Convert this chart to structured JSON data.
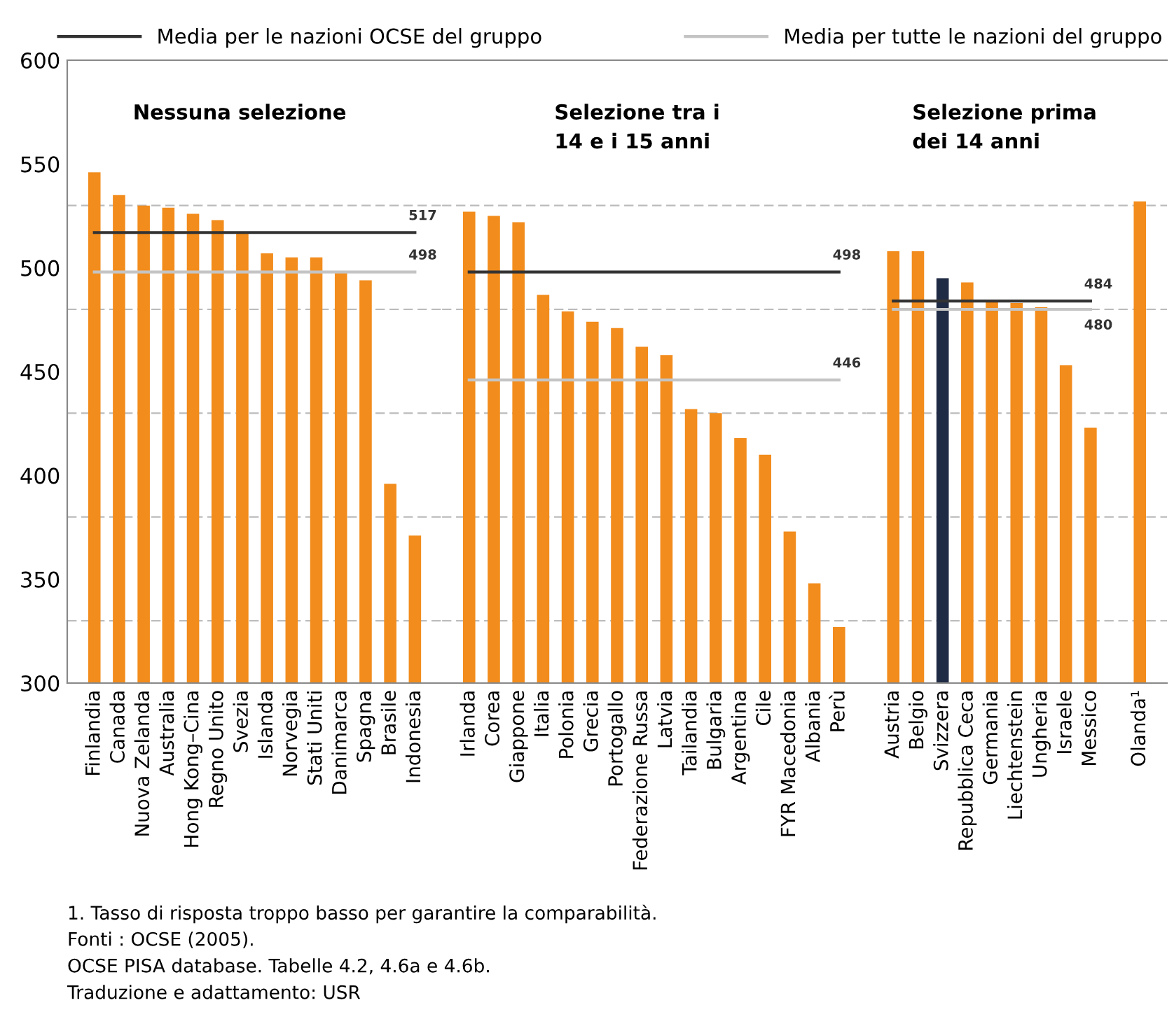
{
  "chart_data": [
    {
      "type": "bar",
      "title": "Nessuna selezione",
      "categories": [
        "Finlandia",
        "Canada",
        "Nuova Zelanda",
        "Australia",
        "Hong Kong–Cina",
        "Regno Unito",
        "Svezia",
        "Islanda",
        "Norvegia",
        "Stati Uniti",
        "Danimarca",
        "Spagna",
        "Brasile",
        "Indonesia"
      ],
      "series": [
        {
          "colors": [
            "#f28c1c",
            "#f28c1c",
            "#f28c1c",
            "#f28c1c",
            "#f28c1c",
            "#f28c1c",
            "#f28c1c",
            "#f28c1c",
            "#f28c1c",
            "#f28c1c",
            "#f28c1c",
            "#f28c1c",
            "#f28c1c",
            "#f28c1c"
          ],
          "values": [
            546,
            535,
            530,
            529,
            526,
            523,
            517,
            507,
            505,
            505,
            498,
            494,
            396,
            371
          ]
        },
        {
          "type": "line",
          "name": "Media per le nazioni OCSE del gruppo",
          "color": "#333333",
          "values": [
            517,
            517,
            517,
            517,
            517,
            517,
            517,
            517,
            517,
            517,
            517,
            517,
            517,
            517
          ],
          "value_labels": [
            null,
            null,
            null,
            null,
            null,
            null,
            null,
            null,
            null,
            null,
            null,
            null,
            null,
            "517"
          ]
        },
        {
          "type": "line",
          "name": "Media per tutte le nazioni del gruppo",
          "color": "#c4c4c4",
          "values": [
            498,
            498,
            498,
            498,
            498,
            498,
            498,
            498,
            498,
            498,
            498,
            498,
            498,
            498
          ],
          "value_labels": [
            null,
            null,
            null,
            null,
            null,
            null,
            null,
            null,
            null,
            null,
            null,
            null,
            null,
            "498"
          ]
        }
      ],
      "ylim": [
        300,
        600
      ],
      "yticks": [
        300,
        {
          "value": 330,
          "label": null
        },
        350,
        {
          "value": 380,
          "label": null
        },
        400,
        {
          "value": 430,
          "label": null
        },
        450,
        {
          "value": 480,
          "label": null
        },
        500,
        {
          "value": 530,
          "label": null
        },
        550,
        600
      ],
      "grid": "y",
      "legend": "top",
      "annotations": [
        "1. Tasso di risposta troppo basso per garantire la comparabilità.",
        "Fonti : OCSE (2005).",
        "OCSE PISA database. Tabelle 4.2, 4.6a e 4.6b.",
        "Traduzione e adattamento: USR"
      ]
    },
    {
      "type": "bar",
      "title": "Selezione tra i\n14 e i 15 anni",
      "categories": [
        "Irlanda",
        "Corea",
        "Giappone",
        "Italia",
        "Polonia",
        "Grecia",
        "Portogallo",
        "Federazione Russa",
        "Latvia",
        "Tailandia",
        "Bulgaria",
        "Argentina",
        "Cile",
        "FYR Macedonia",
        "Albania",
        "Perù"
      ],
      "series": [
        {
          "colors": [
            "#f28c1c",
            "#f28c1c",
            "#f28c1c",
            "#f28c1c",
            "#f28c1c",
            "#f28c1c",
            "#f28c1c",
            "#f28c1c",
            "#f28c1c",
            "#f28c1c",
            "#f28c1c",
            "#f28c1c",
            "#f28c1c",
            "#f28c1c",
            "#f28c1c",
            "#f28c1c"
          ],
          "values": [
            527,
            525,
            522,
            487,
            479,
            474,
            471,
            462,
            458,
            432,
            430,
            418,
            410,
            373,
            348,
            327
          ]
        },
        {
          "type": "line",
          "color": "#333333",
          "values": [
            498,
            498,
            498,
            498,
            498,
            498,
            498,
            498,
            498,
            498,
            498,
            498,
            498,
            498,
            498,
            498
          ],
          "value_labels": [
            null,
            null,
            null,
            null,
            null,
            null,
            null,
            null,
            null,
            null,
            null,
            null,
            null,
            null,
            null,
            "498"
          ]
        },
        {
          "type": "line",
          "color": "#c4c4c4",
          "values": [
            446,
            446,
            446,
            446,
            446,
            446,
            446,
            446,
            446,
            446,
            446,
            446,
            446,
            446,
            446,
            446
          ],
          "value_labels": [
            null,
            null,
            null,
            null,
            null,
            null,
            null,
            null,
            null,
            null,
            null,
            null,
            null,
            null,
            null,
            "446"
          ]
        }
      ],
      "ylim": [
        300,
        600
      ],
      "yticks": [
        300,
        {
          "value": 330,
          "label": null
        },
        350,
        {
          "value": 380,
          "label": null
        },
        400,
        {
          "value": 430,
          "label": null
        },
        450,
        {
          "value": 480,
          "label": null
        },
        500,
        {
          "value": 530,
          "label": null
        },
        550,
        600
      ],
      "grid": "y",
      "tick_labels": "x"
    },
    {
      "type": "bar",
      "title": "Selezione prima\ndei 14 anni",
      "categories": [
        "Austria",
        "Belgio",
        "Svizzera",
        "Repubblica Ceca",
        "Germania",
        "Liechtenstein",
        "Ungheria",
        "Israele",
        "Messico",
        null,
        "Olanda¹"
      ],
      "series": [
        {
          "colors": [
            "#f28c1c",
            "#f28c1c",
            "#1f2a44",
            "#f28c1c",
            "#f28c1c",
            "#f28c1c",
            "#f28c1c",
            "#f28c1c",
            "#f28c1c",
            "#f28c1c",
            "#f28c1c"
          ],
          "values": [
            508,
            508,
            495,
            493,
            484,
            483,
            481,
            453,
            423,
            null,
            532
          ]
        },
        {
          "type": "line",
          "color": "#333333",
          "values": [
            484,
            484,
            484,
            484,
            484,
            484,
            484,
            484,
            484,
            null,
            null
          ],
          "value_labels": [
            null,
            null,
            null,
            null,
            null,
            null,
            null,
            null,
            "484",
            null,
            null
          ]
        },
        {
          "type": "line",
          "color": "#c4c4c4",
          "values": [
            480,
            480,
            480,
            480,
            480,
            480,
            480,
            480,
            480,
            null,
            null
          ],
          "value_labels": [
            null,
            null,
            null,
            null,
            null,
            null,
            null,
            null,
            "480",
            null,
            null
          ]
        }
      ],
      "ylim": [
        300,
        600
      ],
      "yticks": [
        300,
        {
          "value": 330,
          "label": null
        },
        350,
        {
          "value": 380,
          "label": null
        },
        400,
        {
          "value": 430,
          "label": null
        },
        450,
        {
          "value": 480,
          "label": null
        },
        500,
        {
          "value": 530,
          "label": null
        },
        550,
        600
      ],
      "grid": "y",
      "tick_labels": "x"
    }
  ]
}
